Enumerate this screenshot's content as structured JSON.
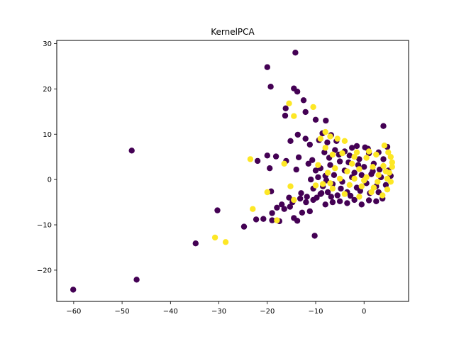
{
  "chart_data": {
    "type": "scatter",
    "title": "KernelPCA",
    "xlabel": "",
    "ylabel": "",
    "xlim": [
      -63.5,
      9.2
    ],
    "ylim": [
      -26.9,
      30.7
    ],
    "xticks": [
      -60,
      -50,
      -40,
      -30,
      -20,
      -10,
      0
    ],
    "xtick_labels": [
      "−60",
      "−50",
      "−40",
      "−30",
      "−20",
      "−10",
      "0"
    ],
    "yticks": [
      -20,
      -10,
      0,
      10,
      20,
      30
    ],
    "ytick_labels": [
      "−20",
      "−10",
      "0",
      "10",
      "20",
      "30"
    ],
    "grid": false,
    "legend": "none",
    "colors": {
      "class_0": "#440154",
      "class_1": "#fde725"
    },
    "series": [
      {
        "color": "#440154",
        "points": [
          [
            -14.2,
            28.0
          ],
          [
            -20.0,
            24.8
          ],
          [
            -19.3,
            20.5
          ],
          [
            -14.5,
            20.1
          ],
          [
            -13.8,
            19.4
          ],
          [
            -12.5,
            17.5
          ],
          [
            -16.2,
            15.7
          ],
          [
            -12.1,
            14.9
          ],
          [
            -16.3,
            14.1
          ],
          [
            -10.0,
            13.2
          ],
          [
            -7.9,
            13.0
          ],
          [
            -13.7,
            9.9
          ],
          [
            -12.1,
            9.0
          ],
          [
            -8.6,
            10.2
          ],
          [
            -6.8,
            9.8
          ],
          [
            -5.7,
            8.5
          ],
          [
            -9.3,
            8.7
          ],
          [
            -7.6,
            8.2
          ],
          [
            -11.2,
            7.7
          ],
          [
            -15.2,
            8.5
          ],
          [
            -48.0,
            6.4
          ],
          [
            4.0,
            11.8
          ],
          [
            4.8,
            7.2
          ],
          [
            -1.5,
            7.4
          ],
          [
            0.2,
            7.1
          ],
          [
            -20.0,
            5.3
          ],
          [
            -18.2,
            5.1
          ],
          [
            -13.5,
            4.9
          ],
          [
            -10.7,
            4.3
          ],
          [
            -22.0,
            4.1
          ],
          [
            -16.1,
            4.1
          ],
          [
            -19.5,
            2.5
          ],
          [
            -14.0,
            2.2
          ],
          [
            -11.5,
            3.5
          ],
          [
            -10.0,
            2.0
          ],
          [
            -60.1,
            -24.3
          ],
          [
            -47.0,
            -22.1
          ],
          [
            -34.8,
            -14.1
          ],
          [
            -24.8,
            -10.4
          ],
          [
            -30.3,
            -6.8
          ],
          [
            -22.3,
            -8.8
          ],
          [
            -20.8,
            -8.7
          ],
          [
            -19.0,
            -7.4
          ],
          [
            -19.0,
            -9.0
          ],
          [
            -17.5,
            -9.2
          ],
          [
            -16.5,
            -6.5
          ],
          [
            -15.3,
            -6.0
          ],
          [
            -14.5,
            -8.5
          ],
          [
            -13.8,
            -9.1
          ],
          [
            -12.8,
            -7.3
          ],
          [
            -11.2,
            -7.0
          ],
          [
            -10.2,
            -12.4
          ],
          [
            -19.2,
            -2.6
          ],
          [
            -15.5,
            -4.0
          ],
          [
            -13.0,
            -3.0
          ],
          [
            -12.0,
            -5.0
          ],
          [
            -10.5,
            -4.5
          ],
          [
            -9.0,
            -3.2
          ],
          [
            -8.0,
            -5.5
          ],
          [
            -6.5,
            -5.0
          ],
          [
            -5.0,
            -4.8
          ],
          [
            -3.5,
            -5.2
          ],
          [
            -2.0,
            -4.5
          ],
          [
            -0.5,
            -5.5
          ],
          [
            1.0,
            -4.6
          ],
          [
            2.5,
            -4.8
          ],
          [
            3.8,
            -4.2
          ],
          [
            -9.0,
            2.5
          ],
          [
            -8.0,
            0.8
          ],
          [
            -7.0,
            3.2
          ],
          [
            -6.2,
            1.0
          ],
          [
            -5.0,
            4.0
          ],
          [
            -4.0,
            2.0
          ],
          [
            -3.0,
            5.3
          ],
          [
            -2.0,
            1.5
          ],
          [
            -1.0,
            4.5
          ],
          [
            0.0,
            2.8
          ],
          [
            1.0,
            5.8
          ],
          [
            2.0,
            3.5
          ],
          [
            3.0,
            6.0
          ],
          [
            4.0,
            4.5
          ],
          [
            5.0,
            2.0
          ],
          [
            -8.5,
            -1.5
          ],
          [
            -7.5,
            -2.8
          ],
          [
            -6.5,
            -1.0
          ],
          [
            -5.5,
            -3.5
          ],
          [
            -4.5,
            -0.5
          ],
          [
            -3.5,
            -2.8
          ],
          [
            -2.5,
            0.5
          ],
          [
            -1.5,
            -1.8
          ],
          [
            -0.5,
            1.0
          ],
          [
            0.5,
            -0.8
          ],
          [
            1.5,
            1.2
          ],
          [
            2.5,
            -1.5
          ],
          [
            3.5,
            0.5
          ],
          [
            4.5,
            -1.2
          ],
          [
            5.5,
            0.8
          ],
          [
            -9.5,
            0.5
          ],
          [
            -10.5,
            -2.0
          ],
          [
            -11.0,
            0.0
          ],
          [
            -8.2,
            6.0
          ],
          [
            -6.0,
            6.5
          ],
          [
            -4.0,
            6.2
          ],
          [
            -2.5,
            7.0
          ],
          [
            0.8,
            6.8
          ],
          [
            -7.2,
            4.8
          ],
          [
            -5.2,
            5.5
          ],
          [
            -3.2,
            3.8
          ],
          [
            -1.2,
            3.2
          ],
          [
            1.8,
            1.8
          ],
          [
            3.2,
            2.2
          ],
          [
            -6.8,
            -3.8
          ],
          [
            -4.8,
            -2.0
          ],
          [
            -2.8,
            -3.6
          ],
          [
            -0.8,
            -2.5
          ],
          [
            1.2,
            -3.0
          ],
          [
            3.0,
            -2.8
          ],
          [
            -9.8,
            -4.0
          ],
          [
            -8.8,
            -3.0
          ],
          [
            -7.8,
            -0.2
          ],
          [
            -11.8,
            -3.8
          ],
          [
            -13.2,
            -4.2
          ],
          [
            -14.8,
            -5.0
          ],
          [
            -17.0,
            -5.5
          ],
          [
            -18.0,
            -6.2
          ]
        ]
      },
      {
        "color": "#fde725",
        "points": [
          [
            -15.5,
            16.8
          ],
          [
            -10.5,
            16.0
          ],
          [
            -14.5,
            14.0
          ],
          [
            -8.0,
            10.5
          ],
          [
            -7.0,
            9.5
          ],
          [
            -5.5,
            9.0
          ],
          [
            -4.0,
            8.5
          ],
          [
            -9.0,
            9.0
          ],
          [
            -23.5,
            4.5
          ],
          [
            -16.5,
            3.5
          ],
          [
            -20.0,
            -2.8
          ],
          [
            -15.2,
            -1.5
          ],
          [
            -10.0,
            -1.3
          ],
          [
            -14.5,
            -4.5
          ],
          [
            -23.0,
            -6.5
          ],
          [
            -30.8,
            -12.8
          ],
          [
            -28.6,
            -13.8
          ],
          [
            -18.0,
            -9.0
          ],
          [
            -6.5,
            5.5
          ],
          [
            -4.5,
            5.8
          ],
          [
            -2.0,
            5.0
          ],
          [
            0.5,
            4.8
          ],
          [
            2.5,
            5.5
          ],
          [
            4.2,
            7.5
          ],
          [
            5.0,
            6.0
          ],
          [
            5.5,
            5.0
          ],
          [
            5.8,
            3.8
          ],
          [
            -6.0,
            2.5
          ],
          [
            -3.5,
            1.8
          ],
          [
            -1.0,
            2.3
          ],
          [
            1.8,
            2.8
          ],
          [
            4.0,
            3.0
          ],
          [
            5.2,
            1.5
          ],
          [
            -7.5,
            1.5
          ],
          [
            -5.0,
            0.2
          ],
          [
            -2.0,
            0.2
          ],
          [
            0.5,
            0.5
          ],
          [
            3.0,
            1.0
          ],
          [
            5.5,
            -0.5
          ],
          [
            -6.5,
            -2.0
          ],
          [
            -3.0,
            -1.2
          ],
          [
            -0.5,
            -1.5
          ],
          [
            2.0,
            -1.8
          ],
          [
            4.8,
            -2.2
          ],
          [
            -8.5,
            -1.0
          ],
          [
            -4.0,
            -3.2
          ],
          [
            -1.0,
            -3.8
          ],
          [
            1.5,
            -2.8
          ],
          [
            3.8,
            -3.5
          ],
          [
            -9.5,
            3.2
          ],
          [
            -7.0,
            -0.8
          ],
          [
            -2.5,
            3.5
          ],
          [
            0.0,
            -0.2
          ],
          [
            2.8,
            -0.5
          ],
          [
            4.5,
            1.8
          ],
          [
            5.8,
            2.8
          ],
          [
            4.8,
            0.2
          ],
          [
            -1.5,
            6.0
          ],
          [
            1.0,
            6.2
          ],
          [
            -8.0,
            7.0
          ]
        ]
      }
    ]
  }
}
